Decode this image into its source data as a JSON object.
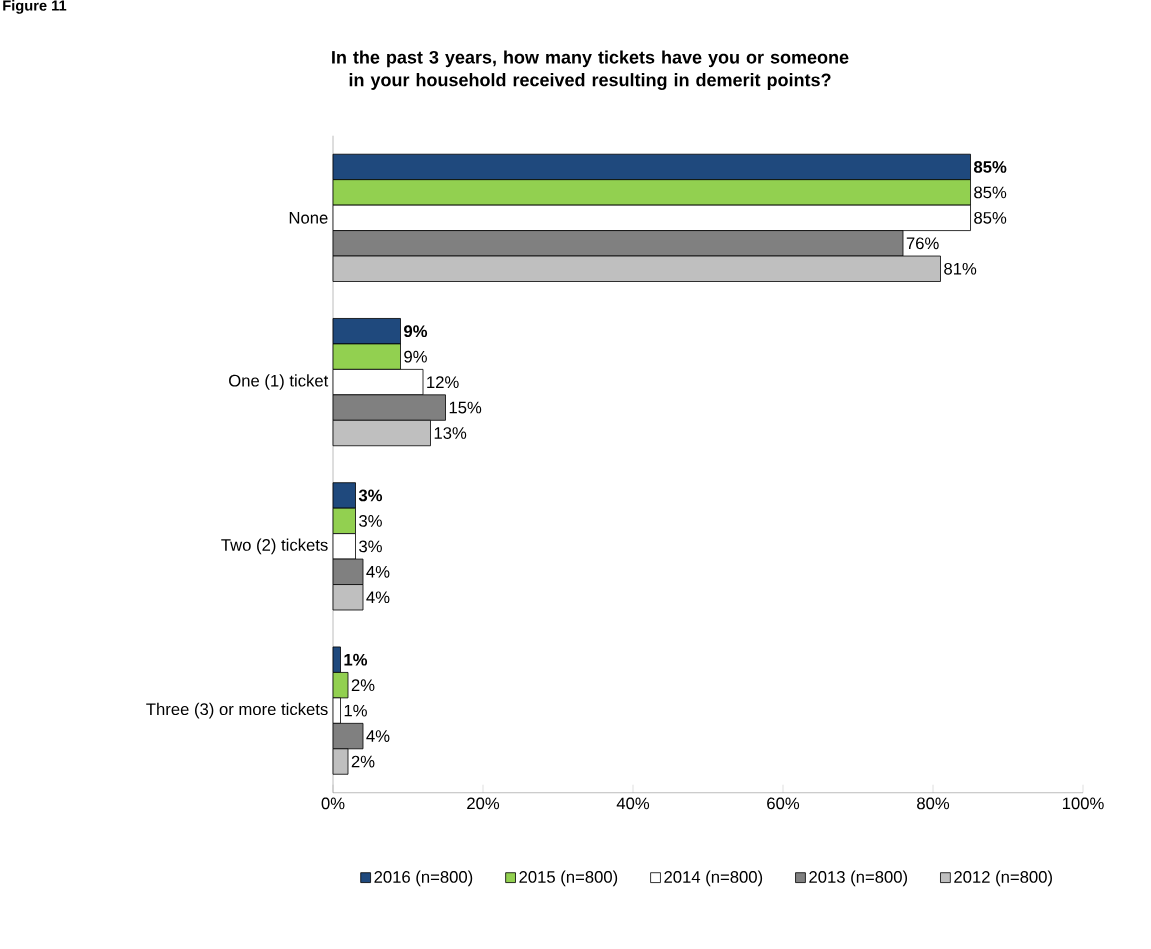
{
  "chart_data": {
    "type": "bar",
    "orientation": "horizontal",
    "title": "In the past 3 years, how many tickets have you or someone in your household received resulting in demerit points?",
    "annotations": [
      "Figure 11"
    ],
    "categories": [
      "None",
      "One (1) ticket",
      "Two (2) tickets",
      "Three (3) or more tickets"
    ],
    "series": [
      {
        "name": "2016 (n=800)",
        "color": "#1f497d",
        "values": [
          85,
          9,
          3,
          1
        ],
        "value_labels": [
          "**85%**",
          "**9%**",
          "**3%**",
          "**1%**"
        ]
      },
      {
        "name": "2015 (n=800)",
        "color": "#92d050",
        "values": [
          85,
          9,
          3,
          2
        ],
        "value_labels": [
          "85%",
          "9%",
          "3%",
          "2%"
        ]
      },
      {
        "name": "2014 (n=800)",
        "color": "#ffffff",
        "values": [
          85,
          12,
          3,
          1
        ],
        "value_labels": [
          "85%",
          "12%",
          "3%",
          "1%"
        ]
      },
      {
        "name": "2013 (n=800)",
        "color": "#808080",
        "values": [
          76,
          15,
          4,
          4
        ],
        "value_labels": [
          "76%",
          "15%",
          "4%",
          "4%"
        ]
      },
      {
        "name": "2012 (n=800)",
        "color": "#bfbfbf",
        "values": [
          81,
          13,
          4,
          2
        ],
        "value_labels": [
          "81%",
          "13%",
          "4%",
          "2%"
        ]
      }
    ],
    "xlim": [
      0,
      100
    ],
    "xticks": [
      {
        "value": 0,
        "label": "0%"
      },
      {
        "value": 20,
        "label": "20%"
      },
      {
        "value": 40,
        "label": "40%"
      },
      {
        "value": 60,
        "label": "60%"
      },
      {
        "value": 80,
        "label": "80%"
      },
      {
        "value": 100,
        "label": "100%"
      }
    ],
    "grid": false,
    "legend": "bottom"
  }
}
